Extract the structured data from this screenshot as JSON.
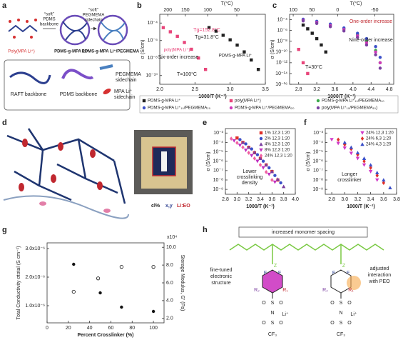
{
  "panel_labels": [
    "a",
    "b",
    "c",
    "d",
    "e",
    "f",
    "g",
    "h"
  ],
  "a": {
    "arrow1": [
      "“soft”",
      "PDMS",
      "backbone"
    ],
    "arrow2": [
      "“soft”",
      "PEGMEMA",
      "sidechain"
    ],
    "polymers": [
      "Poly(MPA Li⁺)",
      "PDMS-g-MPA Li⁺",
      "PDMS-g-MPA Li⁺/PEGMEMA"
    ],
    "legend": {
      "raft": "RAFT backbone",
      "pdms": "PDMS backbone",
      "pegmema": [
        "PEGMEMA",
        "sidechain"
      ],
      "mpa": [
        "MPA Li⁺",
        "sidechain"
      ]
    }
  },
  "d": {
    "caption": [
      "cl%",
      "x,y",
      "Li:EO"
    ]
  },
  "h": {
    "title": "increased monomer spacing",
    "left": [
      "fine-tuned",
      "electronic",
      "structure"
    ],
    "right": [
      "adjusted",
      "interaction",
      "with PEO"
    ],
    "atoms": [
      "F",
      "R₁",
      "R₂",
      "S",
      "O",
      "N",
      "Li⁺",
      "CF₃",
      "Z"
    ]
  },
  "chart_data": [
    {
      "type": "scatter",
      "ylog": true,
      "xlabel": "1000/T (K⁻¹)",
      "ylabel": "σ (S/cm)",
      "top_label": "T(°C)",
      "top_ticks": [
        200,
        150,
        100,
        50
      ],
      "annotations": [
        "Tg=152.8°C",
        "Tg=31.8°C",
        "Six-order increase",
        "T=100°C"
      ],
      "xlim": [
        2.0,
        3.5
      ],
      "xticks": [
        {
          "value": 2,
          "label": "2.0"
        },
        2.5,
        {
          "value": 3,
          "label": "3.0"
        },
        3.5
      ],
      "ylim": [
        1e-11,
        0.001
      ],
      "yticks": [
        {
          "value": 0.0001,
          "label": "10⁻⁴"
        },
        {
          "value": 1e-06,
          "label": "10⁻⁶"
        },
        {
          "value": 1e-08,
          "label": "10⁻⁸"
        },
        {
          "value": 1e-10,
          "label": "10⁻¹⁰"
        }
      ],
      "series": [
        {
          "name": "poly(MPA Li⁺)",
          "color": "#e8457a",
          "marker": "square",
          "x": [
            2.05,
            2.15,
            2.25,
            2.35,
            2.45,
            2.55,
            2.65
          ],
          "values": [
            3e-05,
            1e-05,
            3e-06,
            6e-07,
            1e-07,
            1e-08,
            5e-10
          ]
        },
        {
          "name": "PDMS-g-MPA Li⁺",
          "color": "#222222",
          "marker": "square",
          "x": [
            2.7,
            2.8,
            2.9,
            3.0,
            3.1,
            3.2,
            3.3,
            3.4
          ],
          "values": [
            3e-05,
            1.2e-05,
            4e-06,
            1.2e-06,
            3e-07,
            5e-08,
            6e-09,
            5e-10
          ]
        }
      ]
    },
    {
      "type": "scatter",
      "ylog": true,
      "xlabel": "1000/T (K⁻¹)",
      "ylabel": "σ (S/cm)",
      "top_label": "T(°C)",
      "top_ticks": [
        100,
        50,
        0,
        -50
      ],
      "legend": "below",
      "annotations": [
        "T=30°C",
        "One-order increase",
        "Nine-order increase"
      ],
      "xlim": [
        2.6,
        4.9
      ],
      "xticks": [
        2.8,
        3.2,
        3.6,
        {
          "value": 4,
          "label": "4.0"
        },
        4.4,
        4.8
      ],
      "ylim": [
        1e-16,
        0.001
      ],
      "yticks": [
        {
          "value": 0.0001,
          "label": "10⁻⁴"
        },
        {
          "value": 1e-06,
          "label": "10⁻⁶"
        },
        {
          "value": 1e-08,
          "label": "10⁻⁸"
        },
        {
          "value": 1e-10,
          "label": "10⁻¹⁰"
        },
        {
          "value": 1e-12,
          "label": "10⁻¹²"
        },
        {
          "value": 1e-14,
          "label": "10⁻¹⁴"
        },
        {
          "value": 1e-16,
          "label": "10⁻¹⁶"
        }
      ],
      "series": [
        {
          "name": "PDMS-g-MPA Li⁺",
          "color": "#222222",
          "marker": "square",
          "x": [
            2.9,
            3.0,
            3.1,
            3.2,
            3.3,
            3.4
          ],
          "values": [
            1e-05,
            2e-06,
            3e-07,
            3e-08,
            2e-09,
            1e-10
          ]
        },
        {
          "name": "poly(MPA Li⁺)",
          "color": "#e8457a",
          "marker": "square",
          "x": [
            2.8,
            2.9,
            3.0
          ],
          "values": [
            3e-10,
            1e-12,
            1e-14
          ]
        },
        {
          "name": "PDMS-g-MPA Li⁺₁₀/PEGMEMA₁₀",
          "color": "#3aa84a",
          "marker": "circle",
          "x": [
            2.9,
            3.2,
            3.5,
            3.8,
            4.1,
            4.3,
            4.5,
            4.6
          ],
          "values": [
            0.0001,
            4e-05,
            1e-05,
            2e-06,
            1.5e-07,
            1e-08,
            2e-10,
            1e-12
          ]
        },
        {
          "name": "PDMS-g-MPA Li⁺₁₀/PEGMEMA₂₀",
          "color": "#3b4fc8",
          "marker": "circle",
          "x": [
            2.9,
            3.2,
            3.5,
            3.8,
            4.1,
            4.3,
            4.5,
            4.6
          ],
          "values": [
            0.00012,
            5e-05,
            1.5e-05,
            3e-06,
            3e-07,
            3e-08,
            1e-09,
            1e-11
          ]
        },
        {
          "name": "PDMS-g-MPA Li⁺/PEGMEMA₂₀",
          "color": "#d038b8",
          "marker": "circle",
          "x": [
            2.9,
            3.2,
            3.5,
            3.8,
            4.1,
            4.3,
            4.5,
            4.6
          ],
          "values": [
            8e-05,
            3e-05,
            8e-06,
            1.5e-06,
            1e-07,
            5e-09,
            1e-10,
            1e-12
          ]
        },
        {
          "name": "poly(MPA Li⁺₁₀/PEGMEMA₁₀)",
          "color": "#7b3fa0",
          "marker": "circle",
          "x": [
            2.9,
            3.2,
            3.5,
            3.8,
            4.1,
            4.3,
            4.5,
            4.6
          ],
          "values": [
            6e-05,
            2e-05,
            5e-06,
            8e-07,
            5e-08,
            2e-09,
            3e-11,
            1e-13
          ]
        }
      ]
    },
    {
      "type": "scatter",
      "ylog": true,
      "xlabel": "1000/T (K⁻¹)",
      "ylabel": "σ (S/cm)",
      "legend": "upper right",
      "annotations": [
        "Lower",
        "crosslinking",
        "density"
      ],
      "xlim": [
        2.8,
        4.0
      ],
      "xticks": [
        2.8,
        {
          "value": 3,
          "label": "3.0"
        },
        3.2,
        3.4,
        3.6,
        3.8,
        {
          "value": 4,
          "label": "4.0"
        }
      ],
      "ylim": [
        3e-10,
        0.003
      ],
      "yticks": [
        {
          "value": 0.001,
          "label": "10⁻³"
        },
        {
          "value": 0.0001,
          "label": "10⁻⁴"
        },
        {
          "value": 1e-05,
          "label": "10⁻⁵"
        },
        {
          "value": 1e-06,
          "label": "10⁻⁶"
        },
        {
          "value": 1e-07,
          "label": "10⁻⁷"
        },
        {
          "value": 1e-08,
          "label": "10⁻⁸"
        },
        {
          "value": 1e-09,
          "label": "10⁻⁹"
        }
      ],
      "series": [
        {
          "name": "1%  12,3 1:20",
          "color": "#e0302a",
          "marker": "square",
          "x": [
            3.0,
            3.1,
            3.2,
            3.3,
            3.4,
            3.5,
            3.6,
            3.7
          ],
          "values": [
            0.0003,
            0.0001,
            3e-05,
            8e-06,
            2e-06,
            4e-07,
            8e-08,
            1e-08
          ]
        },
        {
          "name": "2%  12,3 1:20",
          "color": "#3b4fc8",
          "marker": "circle",
          "x": [
            3.05,
            3.15,
            3.25,
            3.35,
            3.45,
            3.55,
            3.65,
            3.75
          ],
          "values": [
            0.0002,
            7e-05,
            2e-05,
            5e-06,
            1e-06,
            2e-07,
            3e-08,
            5e-09
          ]
        },
        {
          "name": "4%  12,3 1:20",
          "color": "#7b3fa0",
          "marker": "triangle",
          "x": [
            3.1,
            3.2,
            3.3,
            3.4,
            3.5,
            3.6,
            3.7,
            3.8
          ],
          "values": [
            0.0001,
            3e-05,
            9e-06,
            2e-06,
            4e-07,
            8e-08,
            1.2e-08,
            2e-09
          ]
        },
        {
          "name": "8%  12,3 1:20",
          "color": "#c030c0",
          "marker": "tri-down",
          "x": [
            2.95,
            3.05,
            3.15,
            3.25,
            3.35,
            3.45,
            3.55,
            3.65
          ],
          "values": [
            0.00015,
            5e-05,
            1.5e-05,
            4e-06,
            1e-06,
            2e-07,
            4e-08,
            6e-09
          ]
        },
        {
          "name": "24% 12,3 1:20",
          "color": "#f060a0",
          "marker": "diamond",
          "x": [
            2.9,
            3.0,
            3.1,
            3.2,
            3.3,
            3.4,
            3.5,
            3.6
          ],
          "values": [
            0.00025,
            9e-05,
            3e-05,
            8e-06,
            2e-06,
            4e-07,
            7e-08,
            1e-08
          ]
        }
      ]
    },
    {
      "type": "scatter",
      "ylog": true,
      "xlabel": "1000/T (K⁻¹)",
      "ylabel": "σ (S/cm)",
      "legend": "upper right",
      "annotations": [
        "Longer",
        "crosslinker"
      ],
      "xlim": [
        2.7,
        3.8
      ],
      "xticks": [
        2.8,
        {
          "value": 3,
          "label": "3.0"
        },
        3.2,
        3.4,
        3.6,
        3.8
      ],
      "ylim": [
        3e-10,
        0.003
      ],
      "yticks": [
        {
          "value": 0.001,
          "label": "10⁻³"
        },
        {
          "value": 0.0001,
          "label": "10⁻⁴"
        },
        {
          "value": 1e-05,
          "label": "10⁻⁵"
        },
        {
          "value": 1e-06,
          "label": "10⁻⁶"
        },
        {
          "value": 1e-07,
          "label": "10⁻⁷"
        },
        {
          "value": 1e-08,
          "label": "10⁻⁸"
        },
        {
          "value": 1e-09,
          "label": "10⁻⁹"
        }
      ],
      "series": [
        {
          "name": "24% 12,3 1:20",
          "color": "#d038c8",
          "marker": "tri-down",
          "x": [
            2.8,
            2.9,
            3.0,
            3.1,
            3.2,
            3.3,
            3.4,
            3.5
          ],
          "values": [
            0.0002,
            8e-05,
            2.5e-05,
            7e-06,
            2e-06,
            4e-07,
            8e-08,
            1e-08
          ]
        },
        {
          "name": "24% 6,3 1:20",
          "color": "#e0302a",
          "marker": "diamond",
          "x": [
            2.9,
            3.0,
            3.1,
            3.2,
            3.3,
            3.4,
            3.5,
            3.6
          ],
          "values": [
            0.0002,
            6e-05,
            2e-05,
            5e-06,
            1e-06,
            2e-07,
            3e-08,
            5e-09
          ]
        },
        {
          "name": "24% 4,3 1:20",
          "color": "#3b4fc8",
          "marker": "triangle",
          "x": [
            3.0,
            3.1,
            3.2,
            3.3,
            3.4,
            3.5,
            3.6,
            3.7
          ],
          "values": [
            0.0001,
            3e-05,
            8e-06,
            2e-06,
            4e-07,
            6e-08,
            1e-08,
            1.5e-09
          ]
        }
      ]
    },
    {
      "type": "scatter",
      "xlabel": "Percent Crosslinker (%)",
      "ylabel": "Total Conductivity σtotal (S cm⁻¹)",
      "y2label": "Storage Modulus, G' (Pa)",
      "y2_multiplier": "x10⁴",
      "xlim": [
        0,
        110
      ],
      "xticks": [
        0,
        20,
        40,
        60,
        80,
        100
      ],
      "ylim": [
        4e-07,
        3.2e-06
      ],
      "yticks": [
        {
          "value": 1e-06,
          "label": "1.0x10⁻⁶"
        },
        {
          "value": 2e-06,
          "label": "2.0x10⁻⁶"
        },
        {
          "value": 3e-06,
          "label": "3.0x10⁻⁶"
        }
      ],
      "y2lim": [
        1.5,
        10.5
      ],
      "y2ticks": [
        {
          "value": 2,
          "label": "2.0"
        },
        {
          "value": 4,
          "label": "4.0"
        },
        {
          "value": 6,
          "label": "6.0"
        },
        {
          "value": 8,
          "label": "8.0"
        },
        {
          "value": 10,
          "label": "10.0"
        }
      ],
      "series": [
        {
          "color": "#111111",
          "marker": "circle",
          "x": [
            25,
            50,
            70,
            100
          ],
          "values": [
            2.45e-06,
            1.45e-06,
            9.5e-07,
            8e-07
          ]
        },
        {
          "color": "#111111",
          "marker": "circle",
          "open": true,
          "axis": "y2",
          "x": [
            25,
            48,
            70,
            100
          ],
          "values": [
            5.0,
            6.5,
            7.8,
            7.8
          ]
        }
      ]
    }
  ]
}
